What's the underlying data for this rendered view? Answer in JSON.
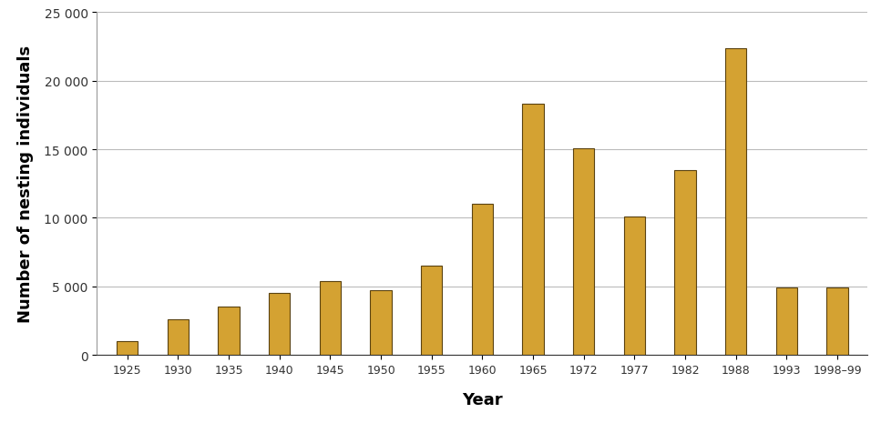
{
  "chart_data": {
    "type": "bar",
    "x_label": "Year",
    "y_label": "Number of nesting individuals",
    "categories": [
      "1925",
      "1930",
      "1935",
      "1940",
      "1945",
      "1950",
      "1955",
      "1960",
      "1965",
      "1972",
      "1977",
      "1982",
      "1988",
      "1993",
      "1998–99"
    ],
    "values": [
      1000,
      2600,
      3500,
      4500,
      5400,
      4700,
      6500,
      11000,
      18300,
      15100,
      10100,
      13500,
      22400,
      4900,
      4900
    ],
    "color": "#d4a232",
    "ylim": [
      0,
      25000
    ],
    "yticks": [
      0,
      {
        "value": 5000,
        "label": "5 000"
      },
      {
        "value": 10000,
        "label": "10 000"
      },
      {
        "value": 15000,
        "label": "15 000"
      },
      {
        "value": 20000,
        "label": "20 000"
      },
      {
        "value": 25000,
        "label": "25 000"
      }
    ],
    "grid": true
  }
}
